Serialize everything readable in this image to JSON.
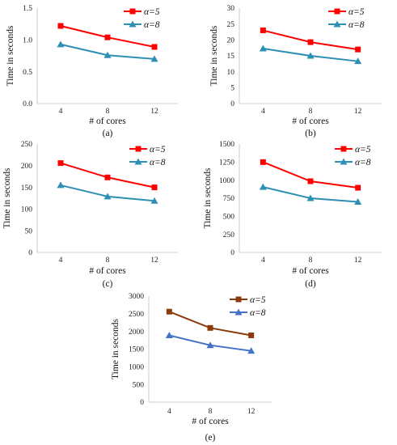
{
  "chart_data": [
    {
      "type": "line",
      "caption": "(a)",
      "categories": [
        "4",
        "8",
        "12"
      ],
      "xlabel": "# of cores",
      "ylabel": "Time in seconds",
      "ylim": [
        0,
        1.5
      ],
      "yticks": [
        "0.0",
        "0.5",
        "1.0",
        "1.5"
      ],
      "series": [
        {
          "name": "α=5",
          "values": [
            1.22,
            1.04,
            0.89
          ],
          "color": "#ff0000",
          "marker": "square"
        },
        {
          "name": "α=8",
          "values": [
            0.93,
            0.76,
            0.7
          ],
          "color": "#2e8fb4",
          "marker": "triangle"
        }
      ]
    },
    {
      "type": "line",
      "caption": "(b)",
      "categories": [
        "4",
        "8",
        "12"
      ],
      "xlabel": "# of cores",
      "ylabel": "Time in seconds",
      "ylim": [
        0,
        30
      ],
      "yticks": [
        "0",
        "5",
        "10",
        "15",
        "20",
        "25",
        "30"
      ],
      "series": [
        {
          "name": "α=5",
          "values": [
            23.0,
            19.3,
            17.0
          ],
          "color": "#ff0000",
          "marker": "square"
        },
        {
          "name": "α=8",
          "values": [
            17.3,
            15.0,
            13.3
          ],
          "color": "#2e8fb4",
          "marker": "triangle"
        }
      ]
    },
    {
      "type": "line",
      "caption": "(c)",
      "categories": [
        "4",
        "8",
        "12"
      ],
      "xlabel": "# of cores",
      "ylabel": "Time in seconds",
      "ylim": [
        0,
        250
      ],
      "yticks": [
        "0",
        "50",
        "100",
        "150",
        "200",
        "250"
      ],
      "series": [
        {
          "name": "α=5",
          "values": [
            206,
            173,
            150
          ],
          "color": "#ff0000",
          "marker": "square"
        },
        {
          "name": "α=8",
          "values": [
            155,
            129,
            119
          ],
          "color": "#2e8fb4",
          "marker": "triangle"
        }
      ]
    },
    {
      "type": "line",
      "caption": "(d)",
      "categories": [
        "4",
        "8",
        "12"
      ],
      "xlabel": "# of cores",
      "ylabel": "Time in seconds",
      "ylim": [
        0,
        1500
      ],
      "yticks": [
        "0",
        "250",
        "500",
        "750",
        "1000",
        "1250",
        "1500"
      ],
      "series": [
        {
          "name": "α=5",
          "values": [
            1250,
            985,
            895
          ],
          "color": "#ff0000",
          "marker": "square"
        },
        {
          "name": "α=8",
          "values": [
            905,
            750,
            700
          ],
          "color": "#2e8fb4",
          "marker": "triangle"
        }
      ]
    },
    {
      "type": "line",
      "caption": "(e)",
      "categories": [
        "4",
        "8",
        "12"
      ],
      "xlabel": "# of cores",
      "ylabel": "Time in seconds",
      "ylim": [
        0,
        3000
      ],
      "yticks": [
        "0",
        "500",
        "1000",
        "1500",
        "2000",
        "2500",
        "3000"
      ],
      "series": [
        {
          "name": "α=5",
          "values": [
            2560,
            2100,
            1890
          ],
          "color": "#8b3a0e",
          "marker": "square"
        },
        {
          "name": "α=8",
          "values": [
            1890,
            1610,
            1450
          ],
          "color": "#4472c4",
          "marker": "triangle"
        }
      ]
    }
  ]
}
